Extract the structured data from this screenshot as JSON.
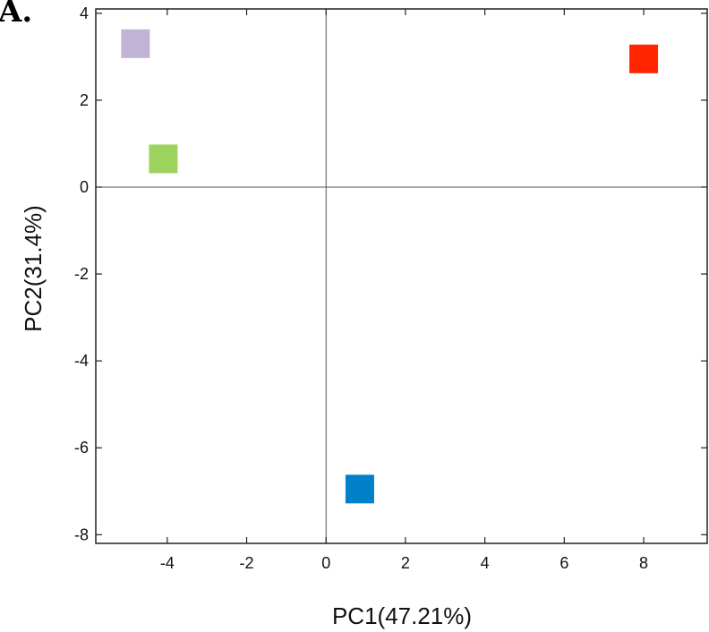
{
  "panel_label": "A.",
  "chart_data": {
    "type": "scatter",
    "title": "",
    "xlabel": "PC1(47.21%)",
    "ylabel": "PC2(31.4%)",
    "xlim": [
      -5.8,
      9.6
    ],
    "ylim": [
      -8.2,
      4.1
    ],
    "xticks": [
      -4,
      -2,
      0,
      2,
      4,
      6,
      8
    ],
    "yticks": [
      -8,
      -6,
      -4,
      -2,
      0,
      2,
      4
    ],
    "xtick_labels": [
      "-4",
      "-2",
      "0",
      "2",
      "4",
      "6",
      "8"
    ],
    "ytick_labels": [
      "-8",
      "-6",
      "-4",
      "-2",
      "0",
      "2",
      "4"
    ],
    "reference_lines": {
      "x": 0,
      "y": 0
    },
    "grid": false,
    "marker": "square",
    "points": [
      {
        "x": -4.8,
        "y": 3.3,
        "color": "#c1b3d6"
      },
      {
        "x": -4.1,
        "y": 0.65,
        "color": "#9fd35f"
      },
      {
        "x": 8.0,
        "y": 2.95,
        "color": "#ff2600"
      },
      {
        "x": 0.85,
        "y": -6.95,
        "color": "#0080c9"
      }
    ]
  }
}
